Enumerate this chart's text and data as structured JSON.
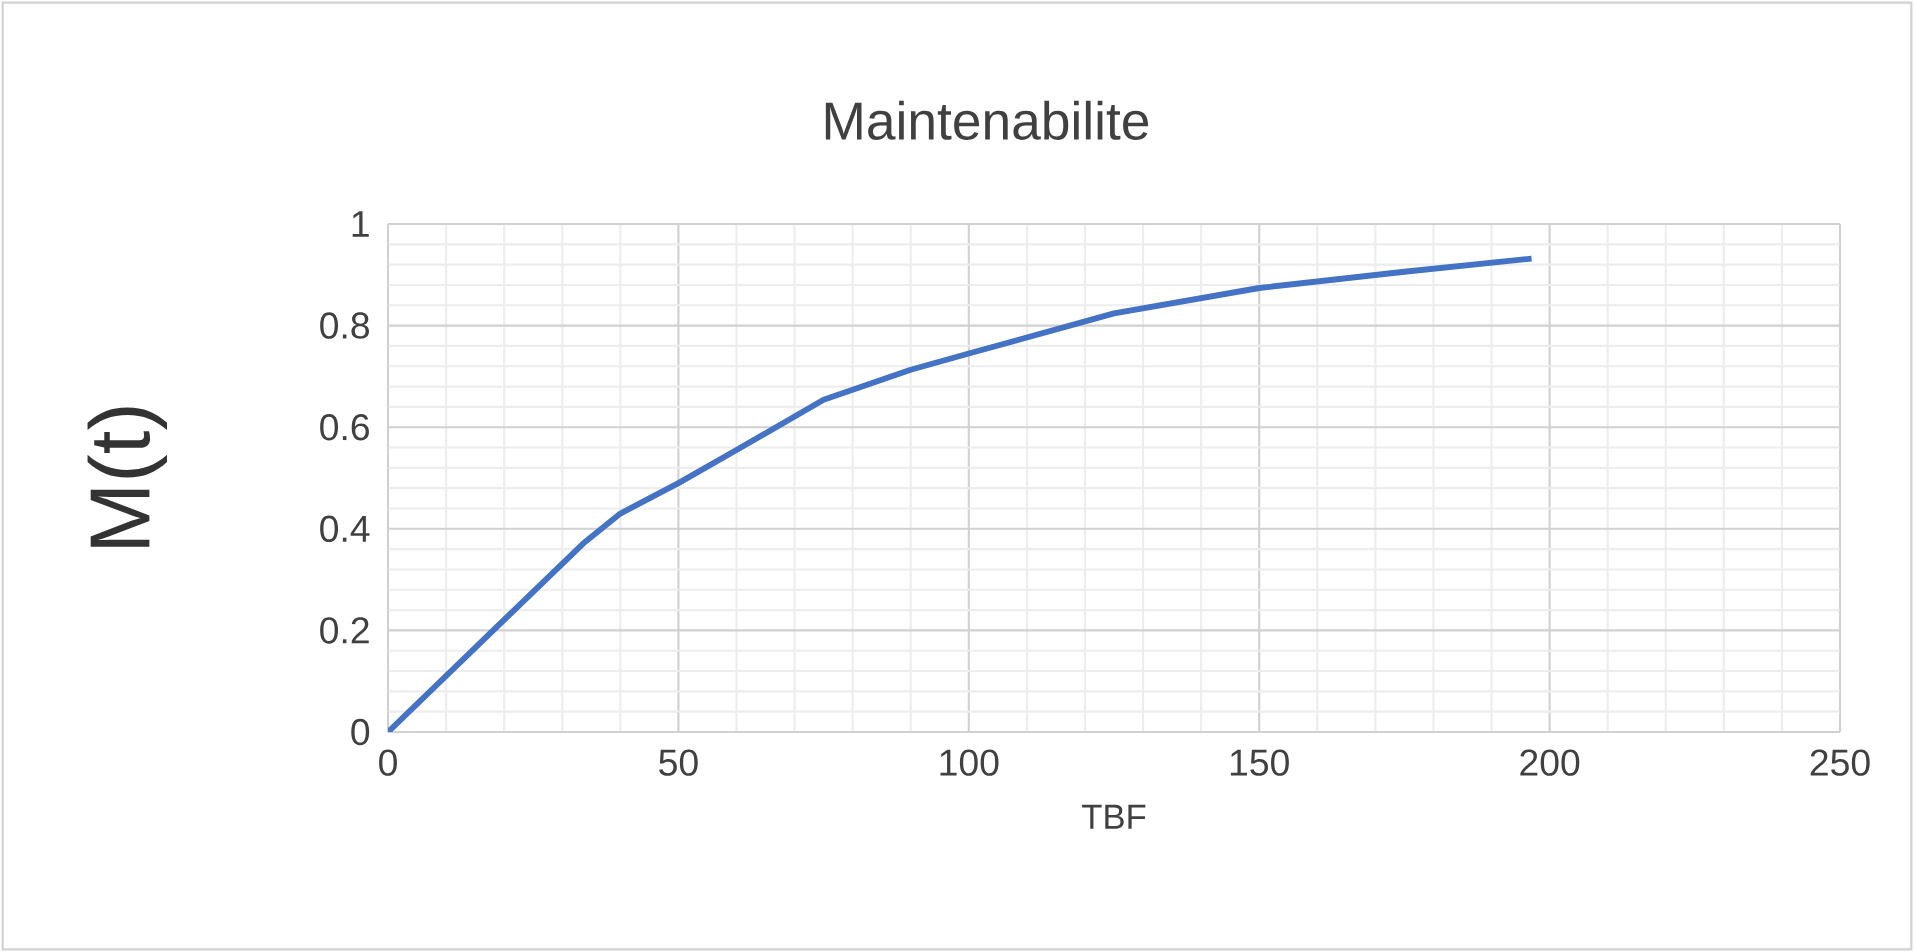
{
  "chart_data": {
    "type": "line",
    "title": "Maintenabilite",
    "xlabel": "TBF",
    "ylabel": "M(t)",
    "series": [
      {
        "color": "#4472c4",
        "x": [
          0,
          33.6,
          40,
          50,
          60,
          75,
          90,
          100,
          125,
          150,
          175,
          196.9
        ],
        "values": [
          0,
          0.371,
          0.43,
          0.49,
          0.555,
          0.654,
          0.713,
          0.745,
          0.824,
          0.874,
          0.906,
          0.932
        ]
      }
    ],
    "xlim": [
      0,
      250
    ],
    "ylim": [
      0,
      1
    ],
    "xticks": [
      0,
      50,
      100,
      150,
      200,
      250
    ],
    "yticks": [
      0,
      0.2,
      0.4,
      0.6,
      0.8,
      1
    ],
    "grid": true,
    "marker": "none",
    "line_style": "solid"
  }
}
